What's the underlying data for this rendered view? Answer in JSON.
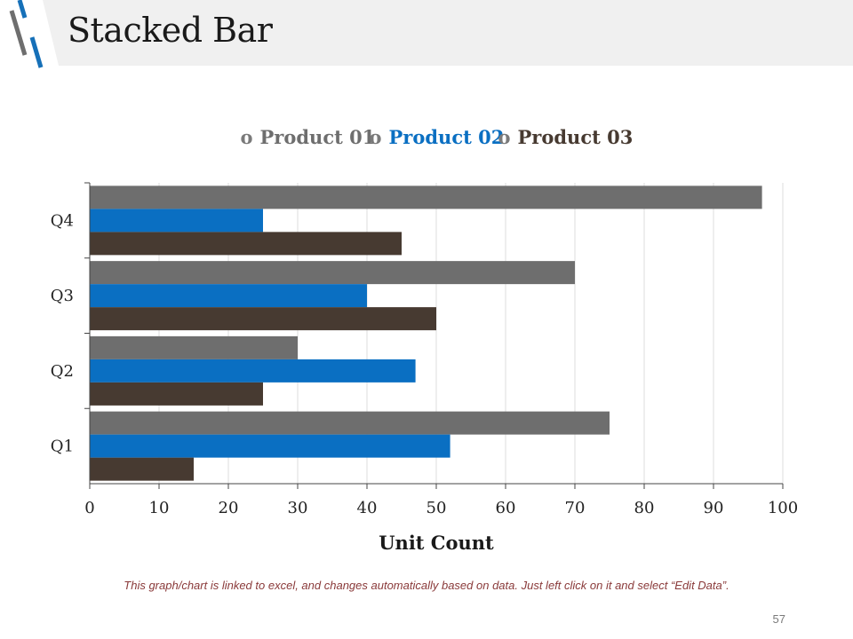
{
  "page": {
    "title": "Stacked Bar",
    "footer_note": "This graph/chart is linked to excel, and changes automatically based on data. Just left click on it and select “Edit Data”.",
    "page_number": "57"
  },
  "colors": {
    "product_01": "#6e6e6e",
    "product_02": "#0a6fc2",
    "product_03": "#473a31",
    "header_band": "#f0f0f0",
    "logo_gray": "#6e6e6e",
    "logo_blue": "#1670b8"
  },
  "chart_data": {
    "type": "bar",
    "orientation": "horizontal",
    "categories": [
      "Q1",
      "Q2",
      "Q3",
      "Q4"
    ],
    "series": [
      {
        "name": "Product 01",
        "values": [
          75,
          30,
          70,
          97
        ]
      },
      {
        "name": "Product 02",
        "values": [
          52,
          47,
          40,
          25
        ]
      },
      {
        "name": "Product 03",
        "values": [
          15,
          25,
          50,
          45
        ]
      }
    ],
    "xlabel": "Unit Count",
    "ylabel": "",
    "xlim": [
      0,
      100
    ],
    "xticks": [
      "0",
      "10",
      "20",
      "30",
      "40",
      "50",
      "60",
      "70",
      "80",
      "90",
      "100"
    ],
    "grid": "vertical",
    "legend_position": "top",
    "legend_marker": "o"
  }
}
